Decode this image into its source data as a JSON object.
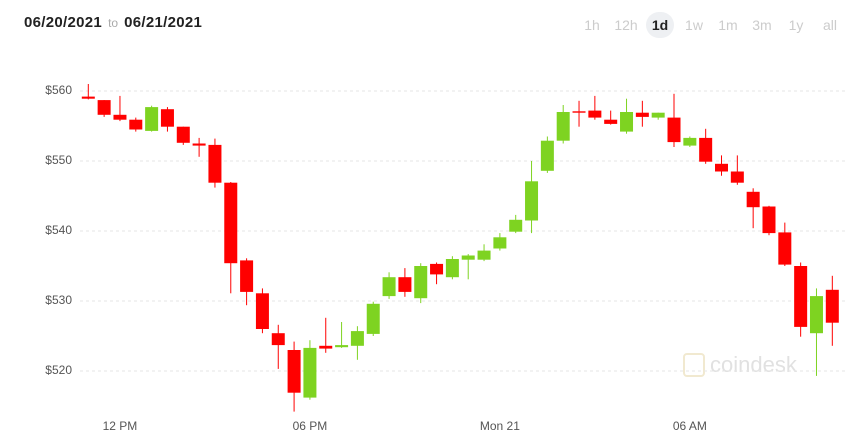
{
  "header": {
    "from": "06/20/2021",
    "to_label": "to",
    "to": "06/21/2021"
  },
  "range_buttons": [
    {
      "label": "1h",
      "selected": false
    },
    {
      "label": "12h",
      "selected": false
    },
    {
      "label": "1d",
      "selected": true
    },
    {
      "label": "1w",
      "selected": false
    },
    {
      "label": "1m",
      "selected": false
    },
    {
      "label": "3m",
      "selected": false
    },
    {
      "label": "1y",
      "selected": false
    },
    {
      "label": "all",
      "selected": false
    }
  ],
  "watermark": "coindesk",
  "chart_data": {
    "type": "candlestick",
    "categories": [
      null,
      null,
      "12 PM",
      null,
      null,
      null,
      null,
      null,
      null,
      null,
      null,
      null,
      null,
      null,
      "06 PM",
      null,
      null,
      null,
      null,
      null,
      null,
      null,
      null,
      null,
      null,
      null,
      "Mon 21",
      null,
      null,
      null,
      null,
      null,
      null,
      null,
      null,
      null,
      null,
      null,
      "06 AM",
      null,
      null,
      null,
      null,
      null,
      null,
      null,
      null,
      null
    ],
    "open": [
      559.2,
      558.7,
      556.6,
      555.9,
      554.3,
      557.4,
      554.9,
      552.5,
      552.3,
      546.9,
      535.8,
      531.1,
      525.4,
      523.0,
      516.2,
      523.6,
      523.4,
      523.6,
      525.3,
      530.7,
      533.4,
      530.4,
      535.3,
      533.4,
      535.9,
      535.9,
      537.5,
      539.9,
      541.5,
      548.6,
      552.9,
      557.1,
      557.2,
      555.9,
      554.2,
      556.9,
      556.2,
      556.2,
      552.2,
      553.3,
      549.6,
      548.5,
      545.6,
      543.5,
      539.8,
      535.0,
      525.4,
      531.6
    ],
    "high": [
      561.0,
      558.7,
      559.3,
      556.2,
      557.9,
      557.7,
      554.9,
      553.3,
      553.2,
      547.0,
      536.1,
      531.8,
      526.6,
      524.2,
      524.4,
      527.6,
      527.0,
      526.4,
      529.9,
      534.1,
      534.7,
      535.4,
      535.5,
      536.4,
      536.7,
      538.1,
      539.7,
      542.3,
      550.0,
      553.5,
      558.0,
      558.6,
      559.3,
      557.2,
      558.9,
      558.6,
      556.9,
      559.6,
      553.5,
      554.6,
      550.8,
      550.8,
      546.1,
      543.6,
      541.2,
      535.5,
      531.8,
      533.6
    ],
    "low": [
      558.8,
      556.3,
      555.7,
      554.2,
      554.2,
      554.2,
      552.3,
      550.6,
      546.2,
      531.1,
      529.4,
      525.4,
      520.3,
      514.2,
      515.9,
      522.6,
      523.3,
      521.6,
      525.0,
      530.3,
      530.6,
      529.7,
      532.4,
      533.1,
      533.1,
      535.7,
      537.2,
      539.7,
      539.7,
      548.3,
      552.5,
      554.9,
      555.9,
      555.2,
      553.9,
      554.9,
      555.9,
      552.0,
      552.0,
      549.6,
      547.9,
      546.6,
      540.4,
      539.4,
      535.0,
      524.9,
      519.3,
      523.6
    ],
    "close": [
      558.9,
      556.6,
      555.9,
      554.5,
      557.7,
      554.9,
      552.6,
      552.2,
      546.9,
      535.4,
      531.3,
      526.0,
      523.7,
      516.9,
      523.3,
      523.2,
      523.7,
      525.7,
      529.6,
      533.4,
      531.3,
      535.0,
      533.8,
      536.0,
      536.5,
      537.2,
      539.1,
      541.6,
      547.1,
      552.9,
      557.0,
      556.9,
      556.2,
      555.3,
      557.0,
      556.3,
      556.9,
      552.7,
      553.3,
      549.9,
      548.5,
      546.9,
      543.4,
      539.7,
      535.2,
      526.3,
      530.7,
      526.9
    ],
    "up_color": "#7ed321",
    "down_color": "#ff0000",
    "ylim": [
      514,
      563
    ],
    "yticks": [
      {
        "value": 520,
        "label": "$520"
      },
      {
        "value": 530,
        "label": "$530"
      },
      {
        "value": 540,
        "label": "$540"
      },
      {
        "value": 550,
        "label": "$550"
      },
      {
        "value": 560,
        "label": "$560"
      }
    ],
    "grid": true
  }
}
